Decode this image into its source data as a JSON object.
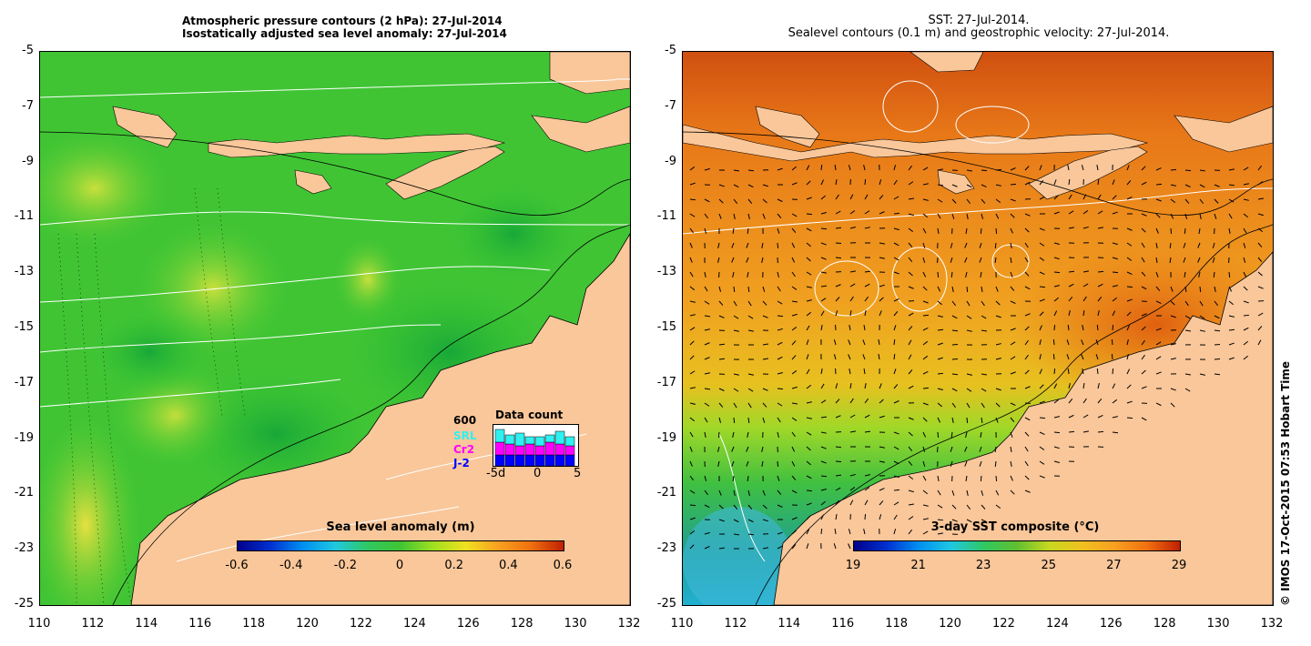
{
  "left_panel": {
    "title_line1": "Atmospheric pressure contours (2 hPa): 27-Jul-2014",
    "title_line2": "Isostatically adjusted sea level anomaly: 27-Jul-2014",
    "colorbar_title": "Sea level anomaly (m)",
    "colorbar_ticks": [
      "-0.6",
      "-0.4",
      "-0.2",
      "0",
      "0.2",
      "0.4",
      "0.6"
    ],
    "data_count": {
      "title": "Data count",
      "max_label": "600",
      "series": [
        {
          "name": "SRL",
          "color": "#30f0f0"
        },
        {
          "name": "Cr2",
          "color": "#ff00ff"
        },
        {
          "name": "J-2",
          "color": "#0000ff"
        }
      ],
      "x_labels": [
        "-5d",
        "0",
        "5"
      ]
    }
  },
  "right_panel": {
    "title_line1": "SST: 27-Jul-2014.",
    "title_line2": "Sealevel contours (0.1 m) and geostrophic velocity: 27-Jul-2014.",
    "colorbar_title": "3-day SST composite (°C)",
    "colorbar_ticks": [
      "19",
      "21",
      "23",
      "25",
      "27",
      "29"
    ]
  },
  "y_ticks": [
    "-5",
    "-7",
    "-9",
    "-11",
    "-13",
    "-15",
    "-17",
    "-19",
    "-21",
    "-23",
    "-25"
  ],
  "x_ticks": [
    "110",
    "112",
    "114",
    "116",
    "118",
    "120",
    "122",
    "124",
    "126",
    "128",
    "130",
    "132"
  ],
  "credit": "© IMOS 17-Oct-2015 07:53 Hobart Time",
  "colors": {
    "land": "#f9c79a",
    "sla_ocean": "#3cc832",
    "sst_ocean": "#f0a020"
  }
}
